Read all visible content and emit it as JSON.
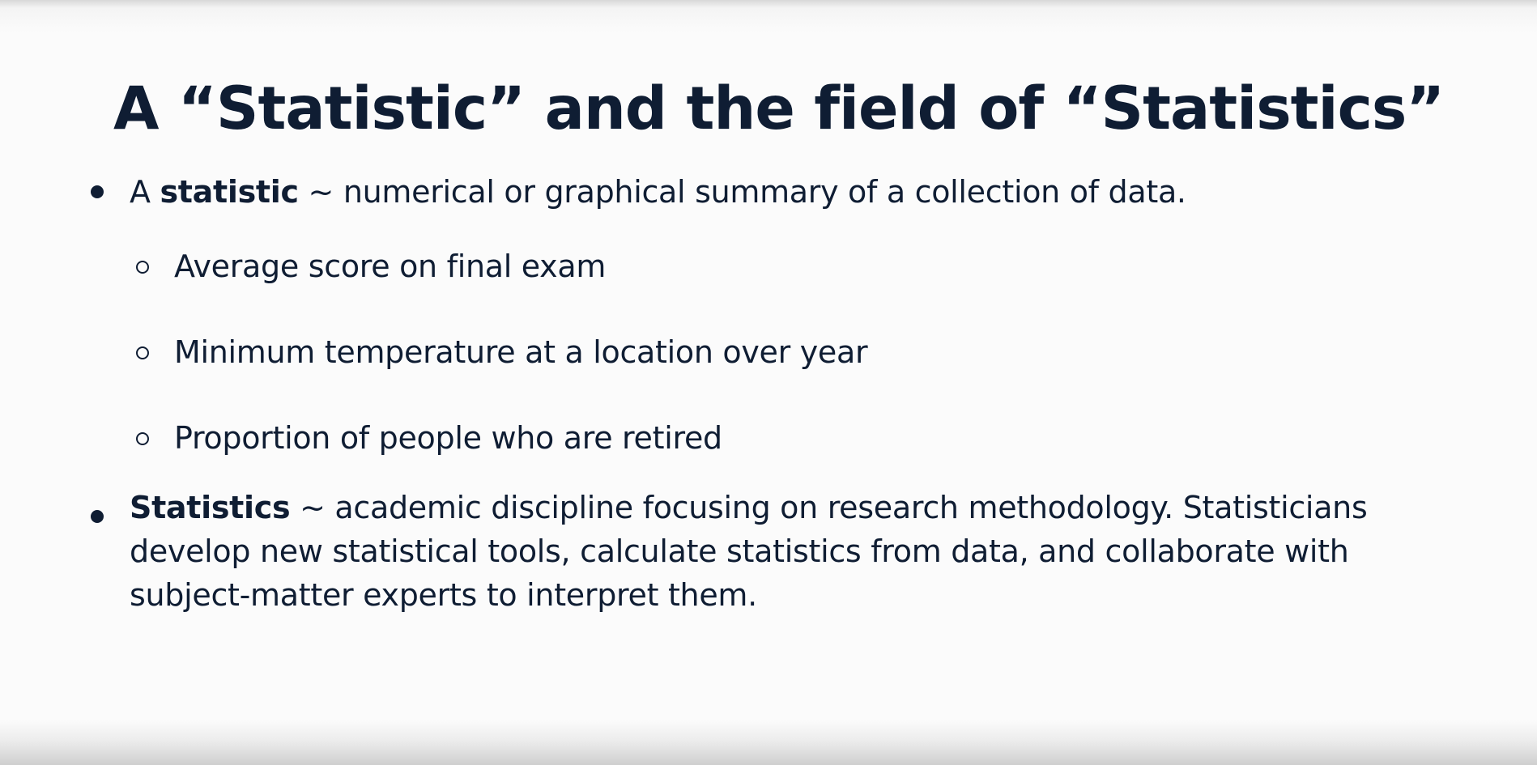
{
  "slide": {
    "title": "A “Statistic” and the field of “Statistics”",
    "bullets": [
      {
        "lead": "A ",
        "term": "statistic",
        "rest": " ~ numerical or graphical summary of a collection of data.",
        "sub_items": [
          "Average score on final exam",
          "Minimum temperature at a location over year",
          "Proportion of people who are retired"
        ]
      },
      {
        "term": "Statistics",
        "rest": " ~ academic discipline focusing on research methodology. Statisticians develop new statistical tools, calculate statistics from data, and collaborate with subject-matter experts to interpret them."
      }
    ]
  }
}
